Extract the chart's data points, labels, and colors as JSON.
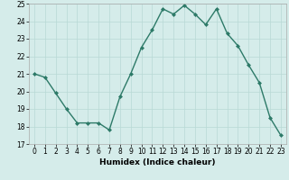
{
  "x": [
    0,
    1,
    2,
    3,
    4,
    5,
    6,
    7,
    8,
    9,
    10,
    11,
    12,
    13,
    14,
    15,
    16,
    17,
    18,
    19,
    20,
    21,
    22,
    23
  ],
  "y": [
    21.0,
    20.8,
    19.9,
    19.0,
    18.2,
    18.2,
    18.2,
    17.8,
    19.7,
    21.0,
    22.5,
    23.5,
    24.7,
    24.4,
    24.9,
    24.4,
    23.8,
    24.7,
    23.3,
    22.6,
    21.5,
    20.5,
    18.5,
    17.5
  ],
  "line_color": "#2d7a68",
  "marker": "D",
  "marker_size": 2.0,
  "line_width": 1.0,
  "bg_color": "#d5ecea",
  "grid_color": "#b8d9d5",
  "xlabel": "Humidex (Indice chaleur)",
  "xlim": [
    -0.5,
    23.5
  ],
  "ylim": [
    17,
    25
  ],
  "yticks": [
    17,
    18,
    19,
    20,
    21,
    22,
    23,
    24,
    25
  ],
  "xticks": [
    0,
    1,
    2,
    3,
    4,
    5,
    6,
    7,
    8,
    9,
    10,
    11,
    12,
    13,
    14,
    15,
    16,
    17,
    18,
    19,
    20,
    21,
    22,
    23
  ],
  "xlabel_fontsize": 6.5,
  "tick_fontsize": 5.5
}
